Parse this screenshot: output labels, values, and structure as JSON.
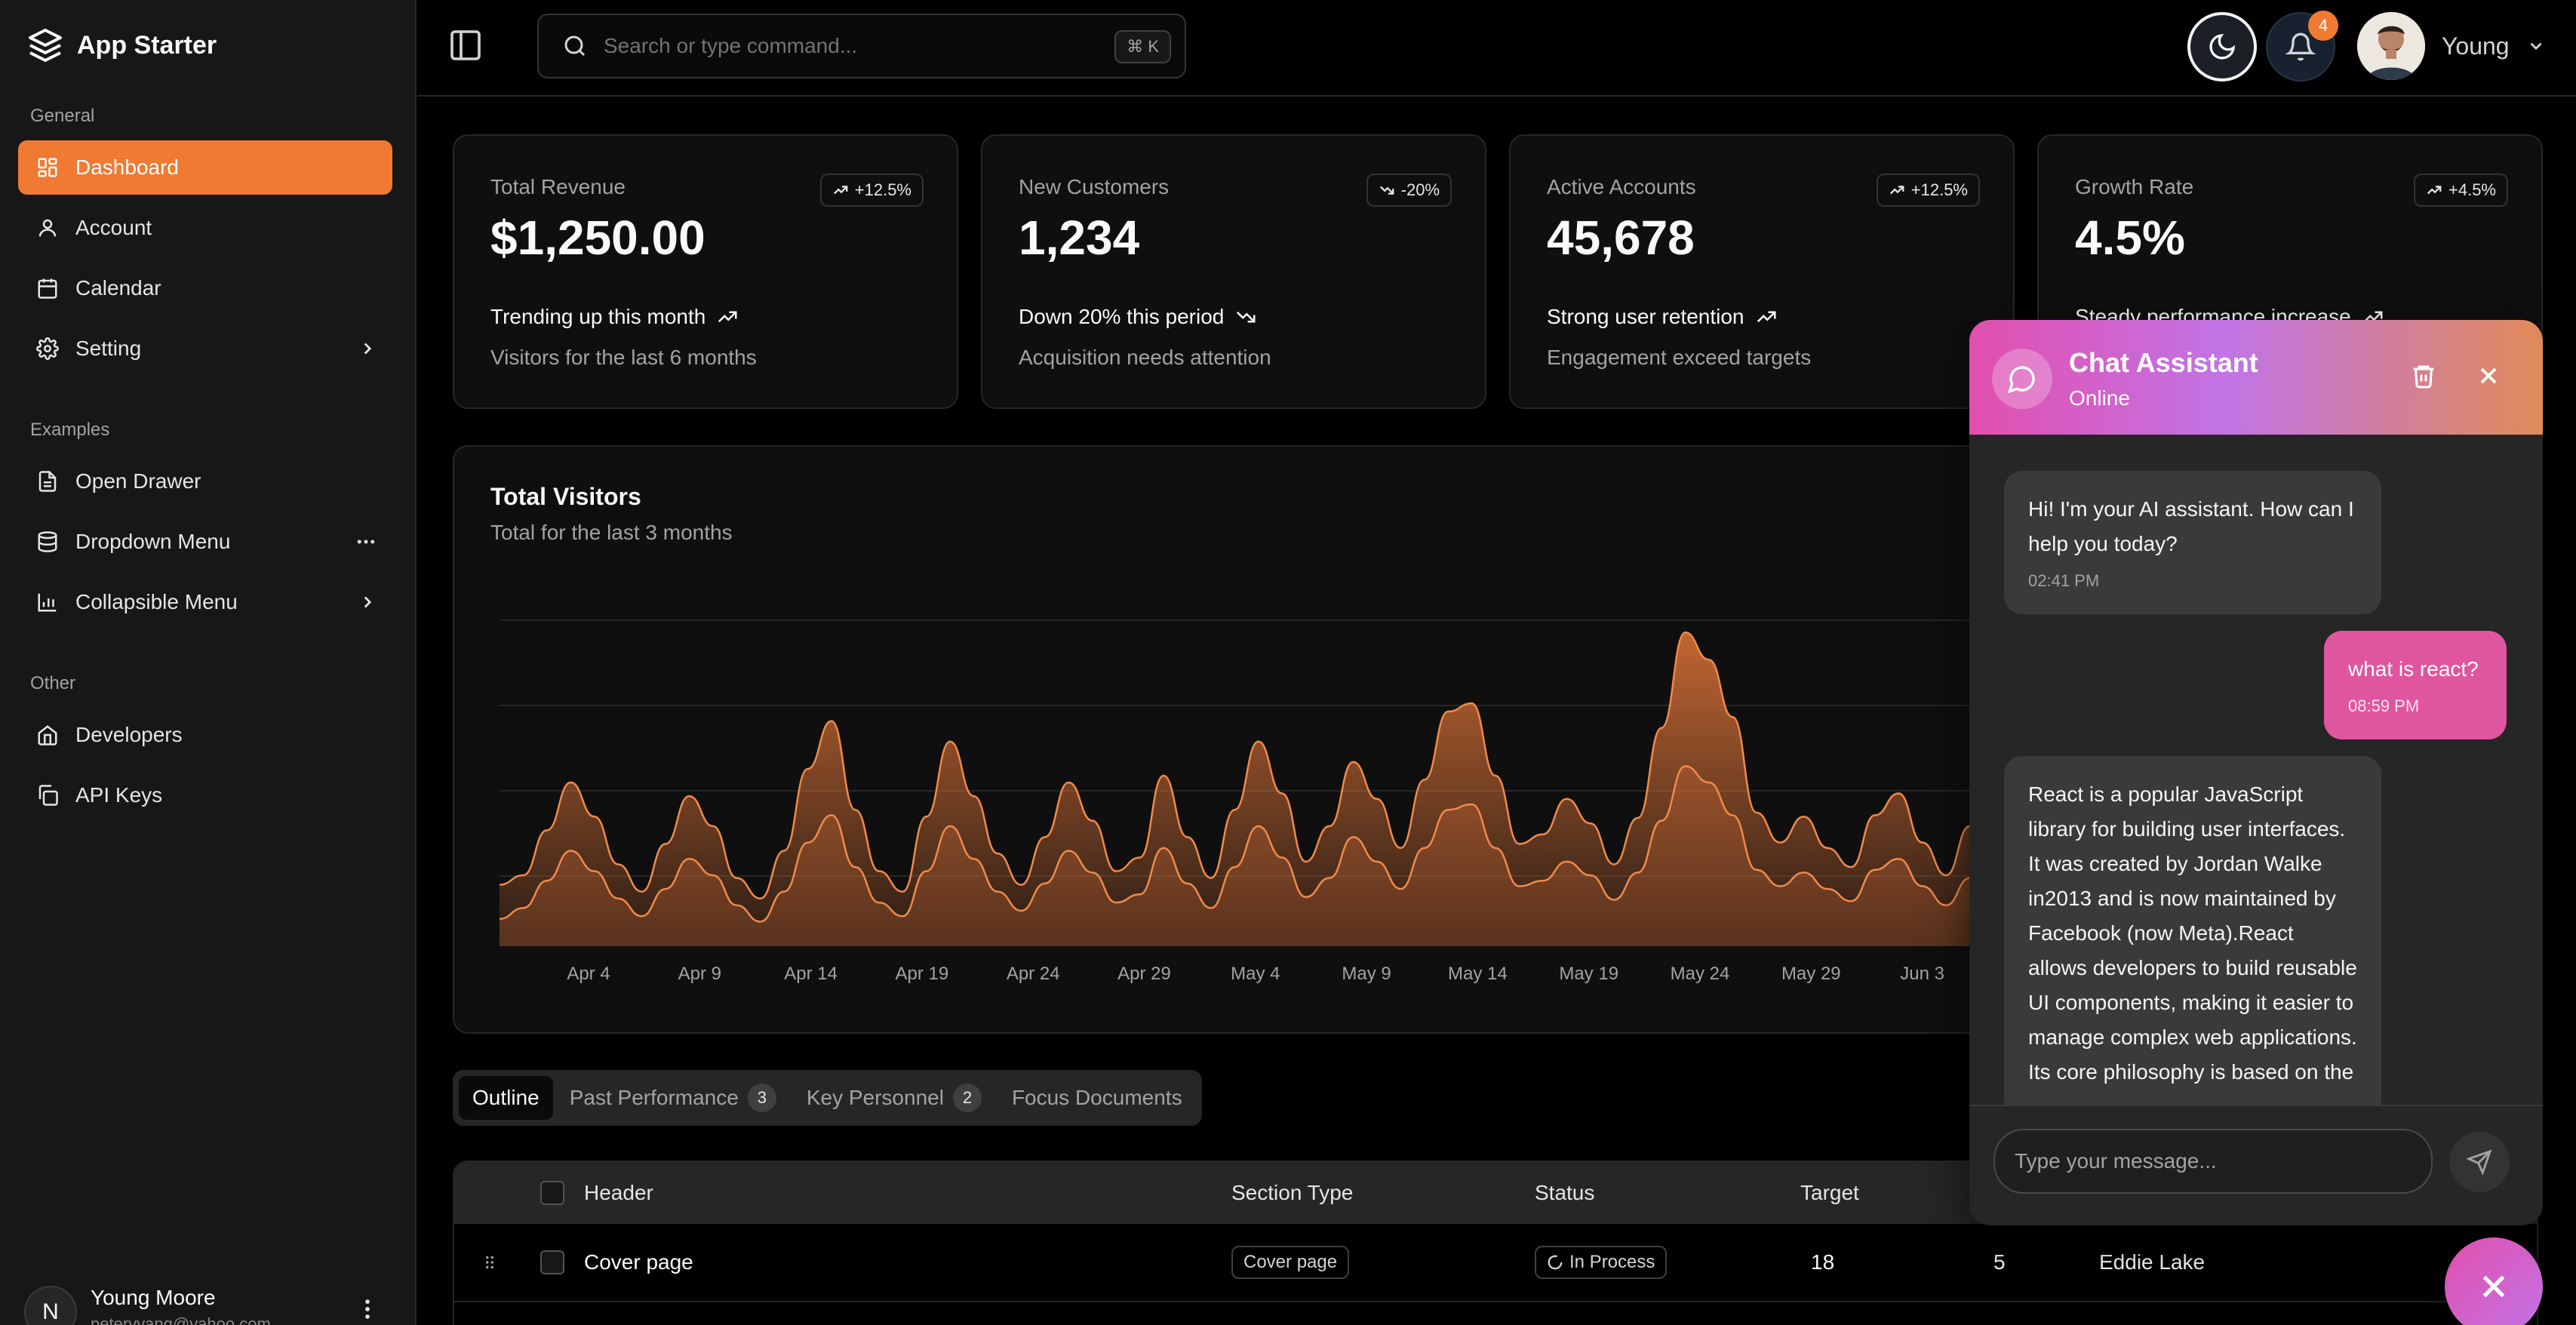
{
  "app": {
    "title": "App Starter"
  },
  "sidebar": {
    "groups": [
      {
        "label": "General",
        "items": [
          {
            "label": "Dashboard",
            "icon": "grid-icon",
            "active": true
          },
          {
            "label": "Account",
            "icon": "user-icon"
          },
          {
            "label": "Calendar",
            "icon": "calendar-icon"
          },
          {
            "label": "Setting",
            "icon": "gear-icon"
          }
        ]
      },
      {
        "label": "Examples",
        "items": [
          {
            "label": "Open Drawer",
            "icon": "file-icon"
          },
          {
            "label": "Dropdown Menu",
            "icon": "database-icon"
          },
          {
            "label": "Collapsible Menu",
            "icon": "bar-chart-icon"
          }
        ]
      },
      {
        "label": "Other",
        "items": [
          {
            "label": "Developers",
            "icon": "home-icon"
          },
          {
            "label": "API Keys",
            "icon": "copy-icon"
          }
        ]
      }
    ],
    "user": {
      "initial": "N",
      "name": "Young Moore",
      "email": "peteryyang@yahoo.com"
    }
  },
  "header": {
    "search": {
      "placeholder": "Search or type command...",
      "shortcut": "⌘ K"
    },
    "notifications": {
      "count": "4"
    },
    "profile": {
      "name": "Young"
    }
  },
  "stats": [
    {
      "label": "Total Revenue",
      "value": "$1,250.00",
      "badge": "+12.5%",
      "trend": "up",
      "foot1": "Trending up this month",
      "foot2": "Visitors for the last 6 months"
    },
    {
      "label": "New Customers",
      "value": "1,234",
      "badge": "-20%",
      "trend": "down",
      "foot1": "Down 20% this period",
      "foot2": "Acquisition needs attention"
    },
    {
      "label": "Active Accounts",
      "value": "45,678",
      "badge": "+12.5%",
      "trend": "up",
      "foot1": "Strong user retention",
      "foot2": "Engagement exceed targets"
    },
    {
      "label": "Growth Rate",
      "value": "4.5%",
      "badge": "+4.5%",
      "trend": "up",
      "foot1": "Steady performance increase",
      "foot2": ""
    }
  ],
  "visitors": {
    "title": "Total Visitors",
    "subtitle": "Total for the last 3 months"
  },
  "chart_data": {
    "type": "area",
    "title": "Total Visitors",
    "subtitle": "Total for the last 3 months",
    "x_ticks": [
      "Apr 4",
      "Apr 9",
      "Apr 14",
      "Apr 19",
      "Apr 24",
      "Apr 29",
      "May 4",
      "May 9",
      "May 14",
      "May 19",
      "May 24",
      "May 29",
      "Jun 3"
    ],
    "grid": true,
    "legend": "none",
    "series": [
      {
        "values": [
          45,
          52,
          85,
          120,
          95,
          60,
          40,
          75,
          110,
          88,
          50,
          35,
          70,
          130,
          165,
          100,
          55,
          40,
          95,
          150,
          110,
          68,
          45,
          80,
          120,
          92,
          55,
          65,
          125,
          80,
          50,
          100,
          150,
          112,
          62,
          88,
          135,
          108,
          72,
          122,
          172,
          178,
          125,
          75,
          82,
          108,
          90,
          60,
          94,
          160,
          230,
          210,
          168,
          98,
          76,
          95,
          72,
          58,
          96,
          112,
          76,
          52,
          88,
          145,
          240,
          202,
          150,
          205,
          168,
          105,
          76,
          108,
          128,
          88,
          62,
          100,
          152,
          118,
          72,
          95,
          138,
          114,
          70,
          48,
          90
        ]
      },
      {
        "values": [
          20,
          28,
          48,
          70,
          55,
          35,
          22,
          42,
          64,
          52,
          30,
          18,
          40,
          76,
          96,
          58,
          32,
          22,
          55,
          88,
          64,
          40,
          26,
          46,
          70,
          54,
          32,
          38,
          72,
          46,
          28,
          58,
          88,
          65,
          36,
          50,
          80,
          62,
          42,
          72,
          100,
          104,
          72,
          44,
          48,
          62,
          52,
          34,
          54,
          92,
          132,
          120,
          96,
          56,
          44,
          54,
          42,
          33,
          56,
          64,
          44,
          30,
          50,
          84,
          138,
          116,
          86,
          118,
          96,
          60,
          44,
          62,
          74,
          50,
          36,
          58,
          88,
          68,
          42,
          54,
          80,
          66,
          40,
          28,
          52
        ]
      }
    ]
  },
  "tabs": [
    {
      "label": "Outline",
      "active": true
    },
    {
      "label": "Past Performance",
      "count": "3"
    },
    {
      "label": "Key Personnel",
      "count": "2"
    },
    {
      "label": "Focus Documents"
    }
  ],
  "table": {
    "headers": {
      "header": "Header",
      "section_type": "Section Type",
      "status": "Status",
      "target": "Target"
    },
    "rows": [
      {
        "header": "Cover page",
        "section_type": "Cover page",
        "status": "In Process",
        "target": "18",
        "limit": "5",
        "reviewer": "Eddie Lake"
      }
    ]
  },
  "chat": {
    "title": "Chat Assistant",
    "status": "Online",
    "messages": [
      {
        "from": "bot",
        "text": "Hi! I'm your AI assistant. How can I help you today?",
        "time": "02:41 PM"
      },
      {
        "from": "user",
        "text": "what is react?",
        "time": "08:59 PM"
      },
      {
        "from": "bot",
        "text": "React is a popular JavaScript library for building user interfaces. It was created by Jordan Walke in2013 and is now maintained by Facebook (now Meta).React allows developers to build reusable UI components, making it easier to manage complex web applications. Its core philosophy is based on the",
        "time": ""
      }
    ],
    "input_placeholder": "Type your message..."
  }
}
